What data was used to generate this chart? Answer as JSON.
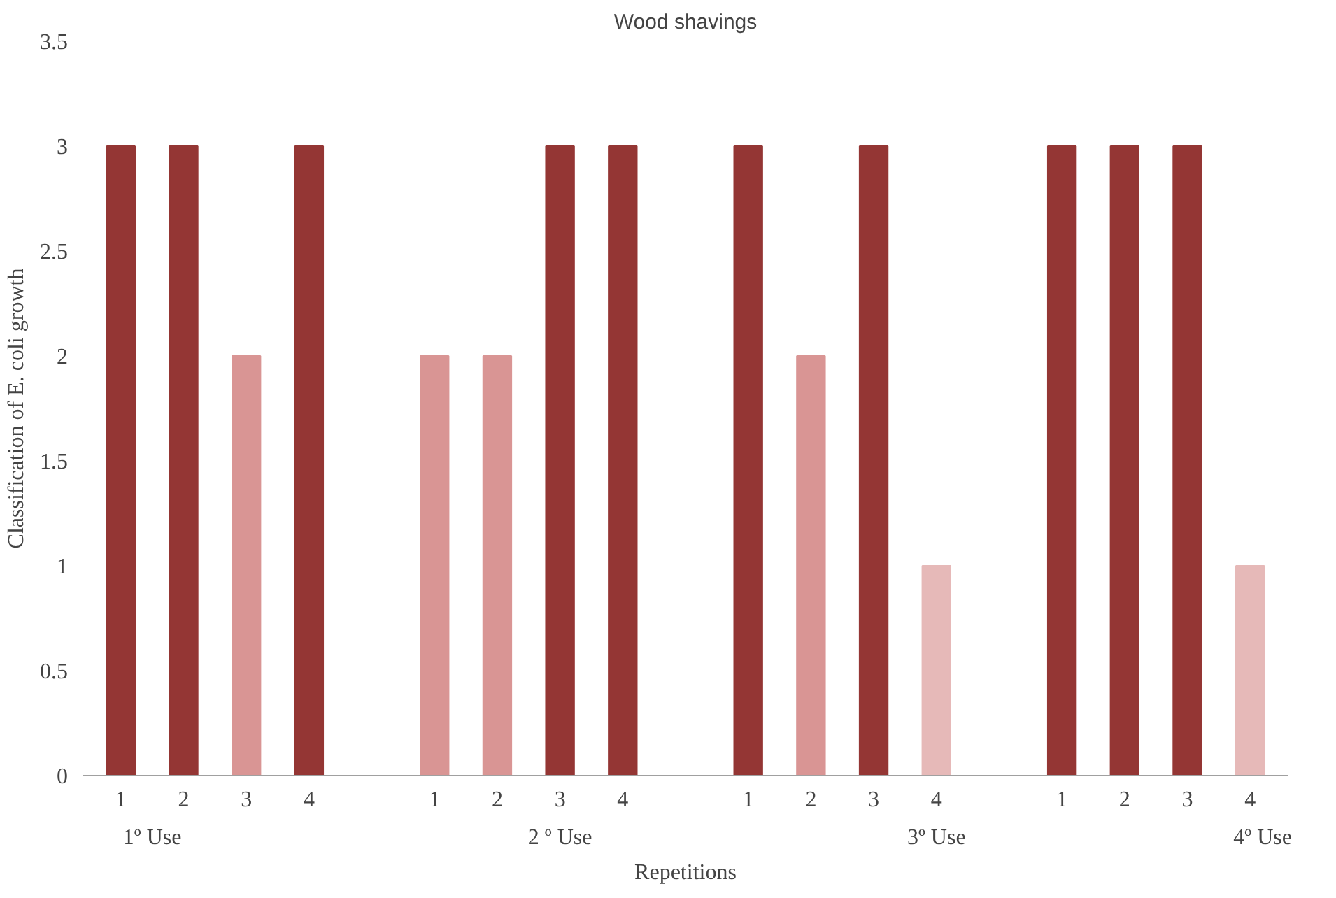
{
  "chart_data": {
    "type": "bar",
    "title": "Wood shavings",
    "xlabel": "Repetitions",
    "ylabel": "Classification of E. coli growth",
    "categories": [
      "1",
      "2",
      "3",
      "4",
      null,
      "1",
      "2",
      "3",
      "4",
      null,
      "1",
      "2",
      "3",
      "4",
      null,
      "1",
      "2",
      "3",
      "4"
    ],
    "values": [
      3,
      3,
      2,
      3,
      null,
      2,
      2,
      3,
      3,
      null,
      3,
      2,
      3,
      1,
      null,
      3,
      3,
      3,
      1
    ],
    "colors": [
      "#943634",
      "#943634",
      "#d99594",
      "#943634",
      "#ffffff",
      "#d99594",
      "#d99594",
      "#943634",
      "#943634",
      "#ffffff",
      "#943634",
      "#d99594",
      "#943634",
      "#e6b9b8",
      "#ffffff",
      "#943634",
      "#943634",
      "#943634",
      "#e6b9b8"
    ],
    "annotations": [
      "1º Use",
      "2 º Use",
      "3º Use",
      "4º Use"
    ],
    "ylim": [
      0,
      3.5
    ],
    "yticks": [
      0,
      0.5,
      1,
      1.5,
      2,
      2.5,
      3,
      3.5
    ],
    "grid": false
  }
}
